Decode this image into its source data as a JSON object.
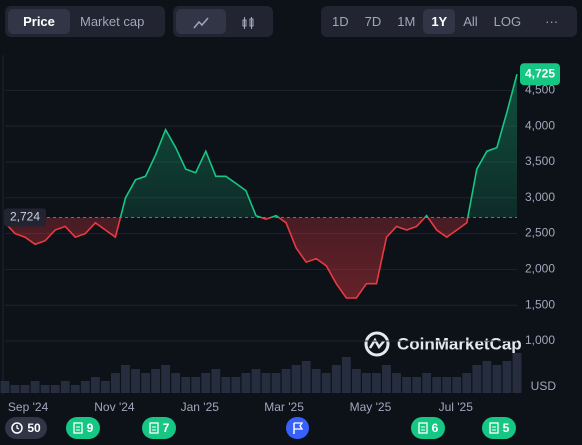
{
  "toolbar": {
    "tabs": [
      "Price",
      "Market cap"
    ],
    "ranges": [
      "1D",
      "7D",
      "1M",
      "1Y",
      "All",
      "LOG"
    ],
    "more": "···",
    "active_tab": "Price",
    "active_range": "1Y"
  },
  "watermark": "CoinMarketCap",
  "events": [
    {
      "label": "50"
    },
    {
      "label": "9"
    },
    {
      "label": "7"
    },
    {
      "label": "6"
    },
    {
      "label": "5"
    }
  ],
  "chart_data": {
    "type": "line",
    "currency": "USD",
    "values": [
      2650,
      2500,
      2450,
      2350,
      2400,
      2550,
      2600,
      2450,
      2500,
      2650,
      2550,
      2450,
      3000,
      3250,
      3300,
      3600,
      3950,
      3700,
      3400,
      3350,
      3650,
      3300,
      3300,
      3200,
      3100,
      2750,
      2700,
      2750,
      2650,
      2300,
      2100,
      2150,
      2050,
      1800,
      1600,
      1600,
      1800,
      1800,
      2450,
      2600,
      2550,
      2600,
      2750,
      2550,
      2450,
      2550,
      2650,
      3400,
      3650,
      3700,
      4200,
      4725
    ],
    "value_labels": [
      null,
      null,
      null,
      null,
      null,
      null,
      null,
      null,
      null,
      null,
      null,
      null,
      null,
      null,
      null,
      null,
      null,
      null,
      null,
      null,
      null,
      null,
      null,
      null,
      null,
      null,
      null,
      null,
      null,
      null,
      null,
      null,
      null,
      null,
      null,
      null,
      null,
      null,
      null,
      null,
      null,
      null,
      null,
      null,
      null,
      null,
      null,
      null,
      null,
      null,
      null,
      "4,725"
    ],
    "volume": [
      3,
      2,
      2,
      3,
      2,
      2,
      3,
      2,
      3,
      4,
      3,
      5,
      7,
      6,
      5,
      6,
      7,
      5,
      4,
      4,
      5,
      6,
      4,
      4,
      5,
      6,
      5,
      5,
      6,
      7,
      8,
      6,
      5,
      7,
      9,
      6,
      5,
      5,
      7,
      5,
      4,
      4,
      5,
      4,
      4,
      4,
      5,
      7,
      8,
      7,
      8,
      10
    ],
    "baseline": {
      "value": 2724,
      "label": "2,724"
    },
    "up_color": "#16c784",
    "down_color": "#ea3943",
    "ylim": [
      700,
      5000
    ],
    "yticks": [
      {
        "value": 1000,
        "label": "1,000"
      },
      {
        "value": 1500,
        "label": "1,500"
      },
      {
        "value": 2000,
        "label": "2,000"
      },
      {
        "value": 2500,
        "label": "2,500"
      },
      {
        "value": 3000,
        "label": "3,000"
      },
      {
        "value": 3500,
        "label": "3,500"
      },
      {
        "value": 4000,
        "label": "4,000"
      },
      {
        "value": 4500,
        "label": "4,500"
      }
    ],
    "xticks": [
      {
        "value": 2.3,
        "label": "Sep '24"
      },
      {
        "value": 10.9,
        "label": "Nov '24"
      },
      {
        "value": 19.4,
        "label": "Jan '25"
      },
      {
        "value": 27.8,
        "label": "Mar '25"
      },
      {
        "value": 36.4,
        "label": "May '25"
      },
      {
        "value": 44.9,
        "label": "Jul '25"
      }
    ],
    "grid": true
  }
}
